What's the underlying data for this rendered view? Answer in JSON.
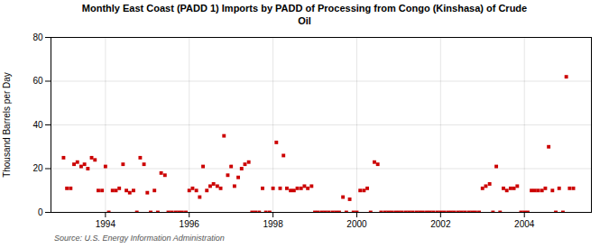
{
  "chart_data": {
    "type": "scatter",
    "title": "Monthly East Coast (PADD 1) Imports by PADD of Processing from Congo (Kinshasa) of Crude\nOil",
    "ylabel": "Thousand Barrels per Day",
    "annotations": [
      "Source: U.S. Energy Information Administration"
    ],
    "color": "#cc0000",
    "marker": "square",
    "grid": true,
    "xlim": [
      1992.7,
      2005.6
    ],
    "xticks": [
      1994,
      1996,
      1998,
      2000,
      2002,
      2004
    ],
    "ylim": [
      0,
      80
    ],
    "yticks": [
      0,
      20,
      40,
      60,
      80
    ],
    "x": [
      1993.0,
      1993.08,
      1993.17,
      1993.25,
      1993.33,
      1993.42,
      1993.5,
      1993.58,
      1993.67,
      1993.75,
      1993.83,
      1993.92,
      1994.0,
      1994.08,
      1994.17,
      1994.25,
      1994.33,
      1994.42,
      1994.5,
      1994.58,
      1994.67,
      1994.75,
      1994.83,
      1994.92,
      1995.0,
      1995.08,
      1995.17,
      1995.25,
      1995.33,
      1995.42,
      1995.5,
      1995.58,
      1995.67,
      1995.75,
      1995.83,
      1995.92,
      1996.0,
      1996.08,
      1996.17,
      1996.25,
      1996.33,
      1996.42,
      1996.5,
      1996.58,
      1996.67,
      1996.75,
      1996.83,
      1996.92,
      1997.0,
      1997.08,
      1997.17,
      1997.25,
      1997.33,
      1997.42,
      1997.5,
      1997.58,
      1997.67,
      1997.75,
      1997.83,
      1997.92,
      1998.0,
      1998.08,
      1998.17,
      1998.25,
      1998.33,
      1998.42,
      1998.5,
      1998.58,
      1998.67,
      1998.75,
      1998.83,
      1998.92,
      1999.0,
      1999.08,
      1999.17,
      1999.25,
      1999.33,
      1999.42,
      1999.5,
      1999.58,
      1999.67,
      1999.75,
      1999.83,
      1999.92,
      2000.0,
      2000.08,
      2000.17,
      2000.25,
      2000.33,
      2000.42,
      2000.5,
      2000.58,
      2000.67,
      2000.75,
      2000.83,
      2000.92,
      2001.0,
      2001.08,
      2001.17,
      2001.25,
      2001.33,
      2001.42,
      2001.5,
      2001.58,
      2001.67,
      2001.75,
      2001.83,
      2001.92,
      2002.0,
      2002.08,
      2002.17,
      2002.25,
      2002.33,
      2002.42,
      2002.5,
      2002.58,
      2002.67,
      2002.75,
      2002.83,
      2002.92,
      2003.0,
      2003.08,
      2003.17,
      2003.25,
      2003.33,
      2003.42,
      2003.5,
      2003.58,
      2003.67,
      2003.75,
      2003.83,
      2003.92,
      2004.0,
      2004.08,
      2004.17,
      2004.25,
      2004.33,
      2004.42,
      2004.5,
      2004.58,
      2004.67,
      2004.75,
      2004.83,
      2004.92,
      2005.0,
      2005.08,
      2005.17
    ],
    "values": [
      25,
      11,
      11,
      22,
      23,
      21,
      22,
      20,
      25,
      24,
      10,
      10,
      21,
      0,
      10,
      10,
      11,
      22,
      10,
      9,
      10,
      0,
      25,
      22,
      9,
      0,
      10,
      0,
      18,
      17,
      0,
      0,
      0,
      0,
      0,
      0,
      10,
      11,
      10,
      7,
      21,
      10,
      12,
      13,
      12,
      11,
      35,
      17,
      21,
      12,
      16,
      20,
      22,
      23,
      0,
      0,
      0,
      11,
      0,
      0,
      11,
      32,
      11,
      26,
      11,
      10,
      10,
      11,
      11,
      12,
      11,
      12,
      0,
      0,
      0,
      0,
      0,
      0,
      0,
      0,
      7,
      0,
      6,
      0,
      0,
      10,
      10,
      11,
      0,
      23,
      22,
      0,
      0,
      0,
      0,
      0,
      0,
      0,
      0,
      0,
      0,
      0,
      0,
      0,
      0,
      0,
      0,
      0,
      0,
      0,
      0,
      0,
      0,
      0,
      0,
      0,
      0,
      0,
      0,
      0,
      11,
      12,
      13,
      0,
      21,
      0,
      11,
      10,
      11,
      11,
      12,
      0,
      0,
      0,
      10,
      10,
      10,
      10,
      11,
      30,
      10,
      0,
      11,
      0,
      62,
      11,
      11
    ]
  }
}
